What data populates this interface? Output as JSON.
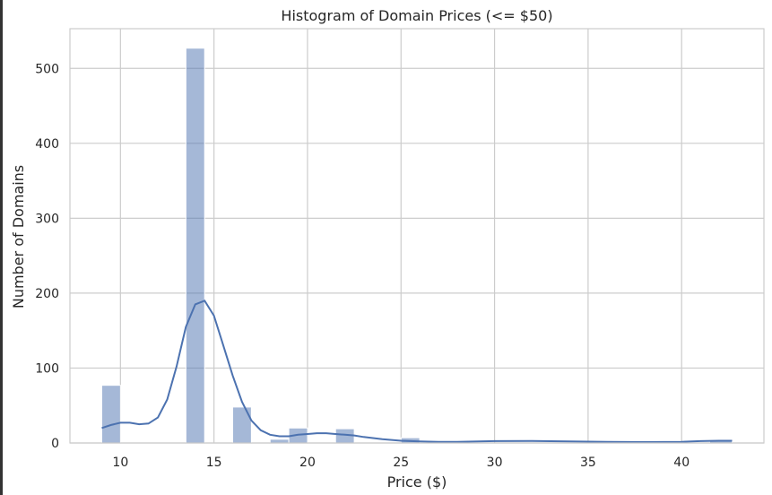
{
  "chart_data": {
    "type": "bar",
    "title": "Histogram of Domain Prices (<= $50)",
    "xlabel": "Price ($)",
    "ylabel": "Number of Domains",
    "xlim": [
      7.3,
      44.4
    ],
    "ylim": [
      0,
      553
    ],
    "xticks": [
      10,
      15,
      20,
      25,
      30,
      35,
      40
    ],
    "yticks": [
      0,
      100,
      200,
      300,
      400,
      500
    ],
    "grid": true,
    "bins": [
      {
        "x0": 9.0,
        "x1": 10.0,
        "count": 77
      },
      {
        "x0": 13.5,
        "x1": 14.5,
        "count": 527
      },
      {
        "x0": 16.0,
        "x1": 17.0,
        "count": 48
      },
      {
        "x0": 18.0,
        "x1": 19.0,
        "count": 5
      },
      {
        "x0": 19.0,
        "x1": 20.0,
        "count": 20
      },
      {
        "x0": 21.5,
        "x1": 22.5,
        "count": 19
      },
      {
        "x0": 25.0,
        "x1": 26.0,
        "count": 7
      },
      {
        "x0": 41.5,
        "x1": 42.7,
        "count": 3
      }
    ],
    "kde": {
      "x": [
        9.0,
        9.5,
        10.0,
        10.5,
        11.0,
        11.5,
        12.0,
        12.5,
        13.0,
        13.5,
        14.0,
        14.5,
        15.0,
        15.5,
        16.0,
        16.5,
        17.0,
        17.5,
        18.0,
        18.5,
        19.0,
        19.5,
        20.0,
        20.5,
        21.0,
        21.5,
        22.0,
        22.5,
        23.0,
        24.0,
        25.0,
        26.0,
        27.0,
        28.0,
        30.0,
        32.0,
        34.0,
        36.0,
        38.0,
        40.0,
        41.0,
        42.0,
        42.7
      ],
      "y": [
        20,
        24,
        27,
        27,
        25,
        26,
        34,
        58,
        102,
        155,
        185,
        190,
        170,
        130,
        90,
        55,
        30,
        17,
        11,
        9,
        9,
        11,
        12,
        13,
        13,
        12,
        11,
        10,
        8,
        5,
        3,
        2,
        1.5,
        1.5,
        2.5,
        2.8,
        2.2,
        1.5,
        1.2,
        1.5,
        2.5,
        3,
        3
      ]
    }
  },
  "colors": {
    "bar": "#4c72b0",
    "line": "#4c72b0",
    "grid": "#cccccc",
    "frame": "#cccccc"
  }
}
